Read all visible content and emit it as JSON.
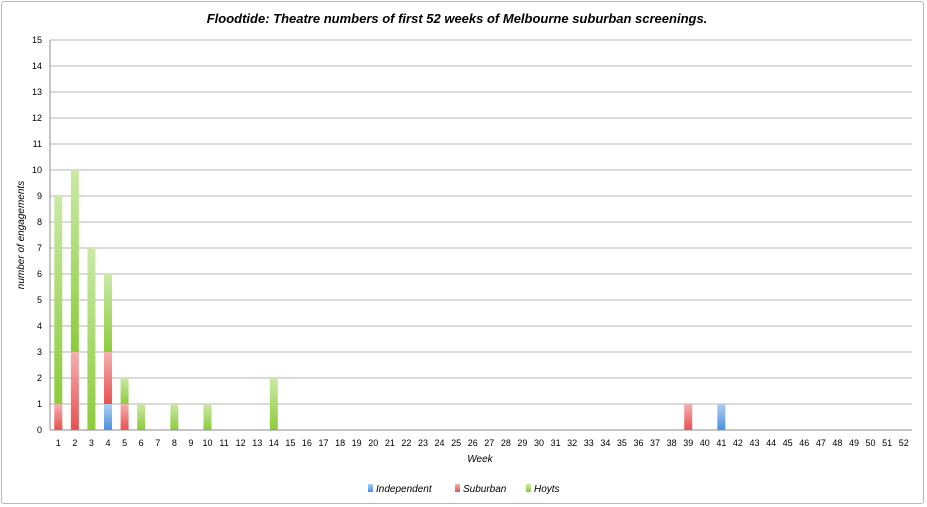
{
  "chart_data": {
    "type": "bar",
    "stacked": true,
    "title": "Floodtide: Theatre numbers of first 52 weeks of Melbourne suburban screenings.",
    "xlabel": "Week",
    "ylabel": "number of engagements",
    "ylim": [
      0,
      15
    ],
    "ytick_step": 1,
    "grid": true,
    "legend_position": "bottom-center",
    "categories": [
      "1",
      "2",
      "3",
      "4",
      "5",
      "6",
      "7",
      "8",
      "9",
      "10",
      "11",
      "12",
      "13",
      "14",
      "15",
      "16",
      "17",
      "18",
      "19",
      "20",
      "21",
      "22",
      "23",
      "24",
      "25",
      "26",
      "27",
      "28",
      "29",
      "30",
      "31",
      "32",
      "33",
      "34",
      "35",
      "36",
      "37",
      "38",
      "39",
      "40",
      "41",
      "42",
      "43",
      "44",
      "45",
      "46",
      "47",
      "48",
      "49",
      "50",
      "51",
      "52"
    ],
    "series": [
      {
        "name": "Independent",
        "color": "#4a90e2",
        "values": [
          0,
          0,
          0,
          1,
          0,
          0,
          0,
          0,
          0,
          0,
          0,
          0,
          0,
          0,
          0,
          0,
          0,
          0,
          0,
          0,
          0,
          0,
          0,
          0,
          0,
          0,
          0,
          0,
          0,
          0,
          0,
          0,
          0,
          0,
          0,
          0,
          0,
          0,
          0,
          0,
          1,
          0,
          0,
          0,
          0,
          0,
          0,
          0,
          0,
          0,
          0,
          0
        ]
      },
      {
        "name": "Suburban",
        "color": "#e85050",
        "values": [
          1,
          3,
          0,
          2,
          1,
          0,
          0,
          0,
          0,
          0,
          0,
          0,
          0,
          0,
          0,
          0,
          0,
          0,
          0,
          0,
          0,
          0,
          0,
          0,
          0,
          0,
          0,
          0,
          0,
          0,
          0,
          0,
          0,
          0,
          0,
          0,
          0,
          0,
          1,
          0,
          0,
          0,
          0,
          0,
          0,
          0,
          0,
          0,
          0,
          0,
          0,
          0
        ]
      },
      {
        "name": "Hoyts",
        "color": "#8ccc3c",
        "values": [
          8,
          7,
          7,
          3,
          1,
          1,
          0,
          1,
          0,
          1,
          0,
          0,
          0,
          2,
          0,
          0,
          0,
          0,
          0,
          0,
          0,
          0,
          0,
          0,
          0,
          0,
          0,
          0,
          0,
          0,
          0,
          0,
          0,
          0,
          0,
          0,
          0,
          0,
          0,
          0,
          0,
          0,
          0,
          0,
          0,
          0,
          0,
          0,
          0,
          0,
          0,
          0
        ]
      }
    ]
  }
}
